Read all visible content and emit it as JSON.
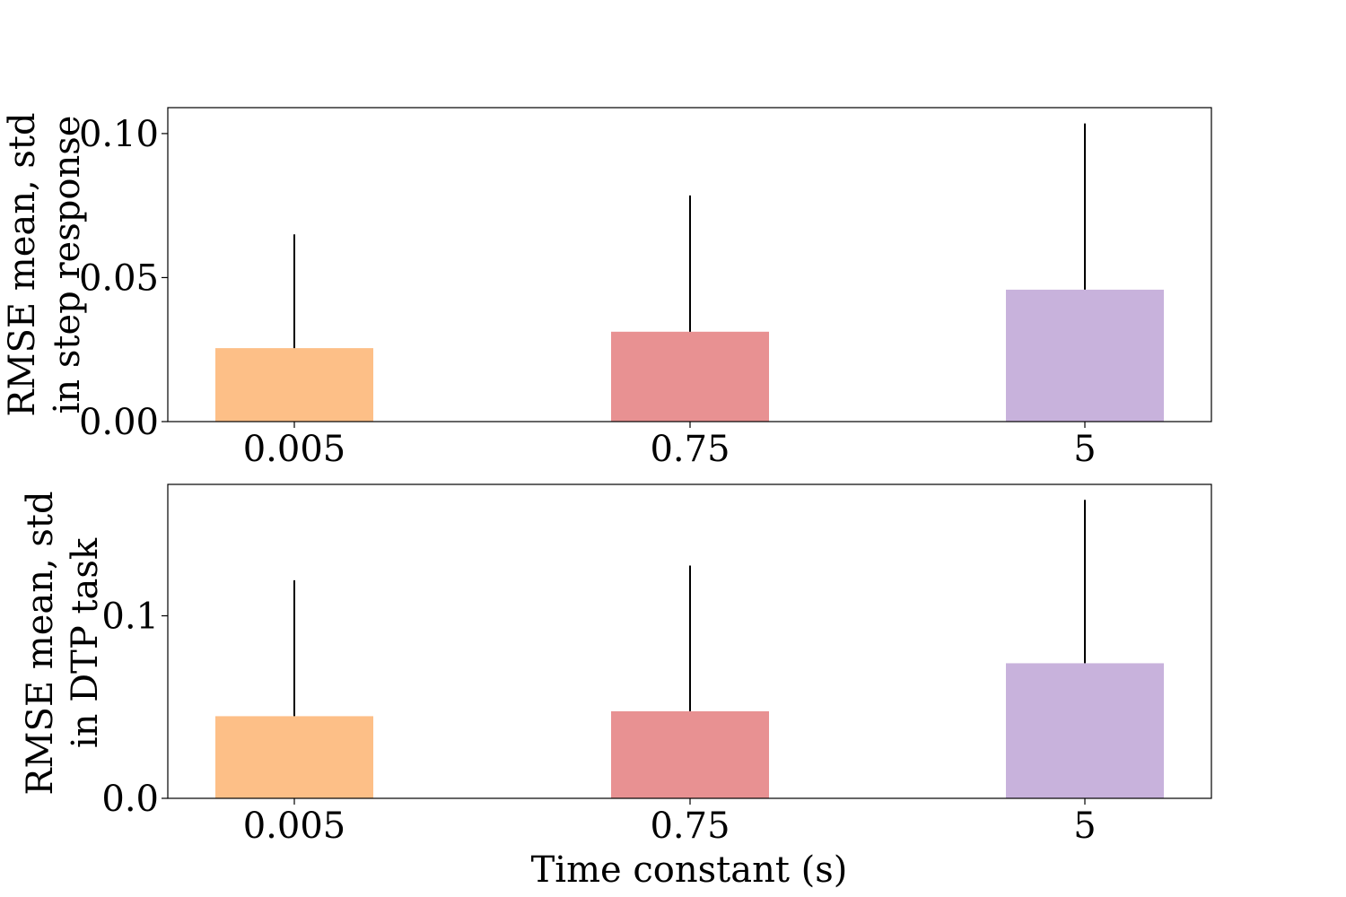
{
  "chart_data": [
    {
      "type": "bar",
      "categories": [
        "0.005",
        "0.75",
        "5"
      ],
      "values": [
        0.0255,
        0.0312,
        0.0458
      ],
      "error_upper": [
        0.065,
        0.0785,
        0.1035
      ],
      "colors": [
        "#FDBF87",
        "#E89192",
        "#C8B2DC"
      ],
      "ylabel_lines": [
        "RMSE mean, std",
        "in step response"
      ],
      "xlabel": "",
      "ylim": [
        0,
        0.109
      ],
      "yticks": [
        0.0,
        0.05,
        0.1
      ],
      "ytick_labels": [
        "0.00",
        "0.05",
        "0.10"
      ]
    },
    {
      "type": "bar",
      "categories": [
        "0.005",
        "0.75",
        "5"
      ],
      "values": [
        0.045,
        0.0477,
        0.074
      ],
      "error_upper": [
        0.1195,
        0.1275,
        0.1635
      ],
      "colors": [
        "#FDBF87",
        "#E89192",
        "#C8B2DC"
      ],
      "ylabel_lines": [
        "RMSE mean, std",
        "in DTP task"
      ],
      "xlabel": "Time constant (s)",
      "ylim": [
        0,
        0.172
      ],
      "yticks": [
        0.0,
        0.1
      ],
      "ytick_labels": [
        "0.0",
        "0.1"
      ]
    }
  ]
}
